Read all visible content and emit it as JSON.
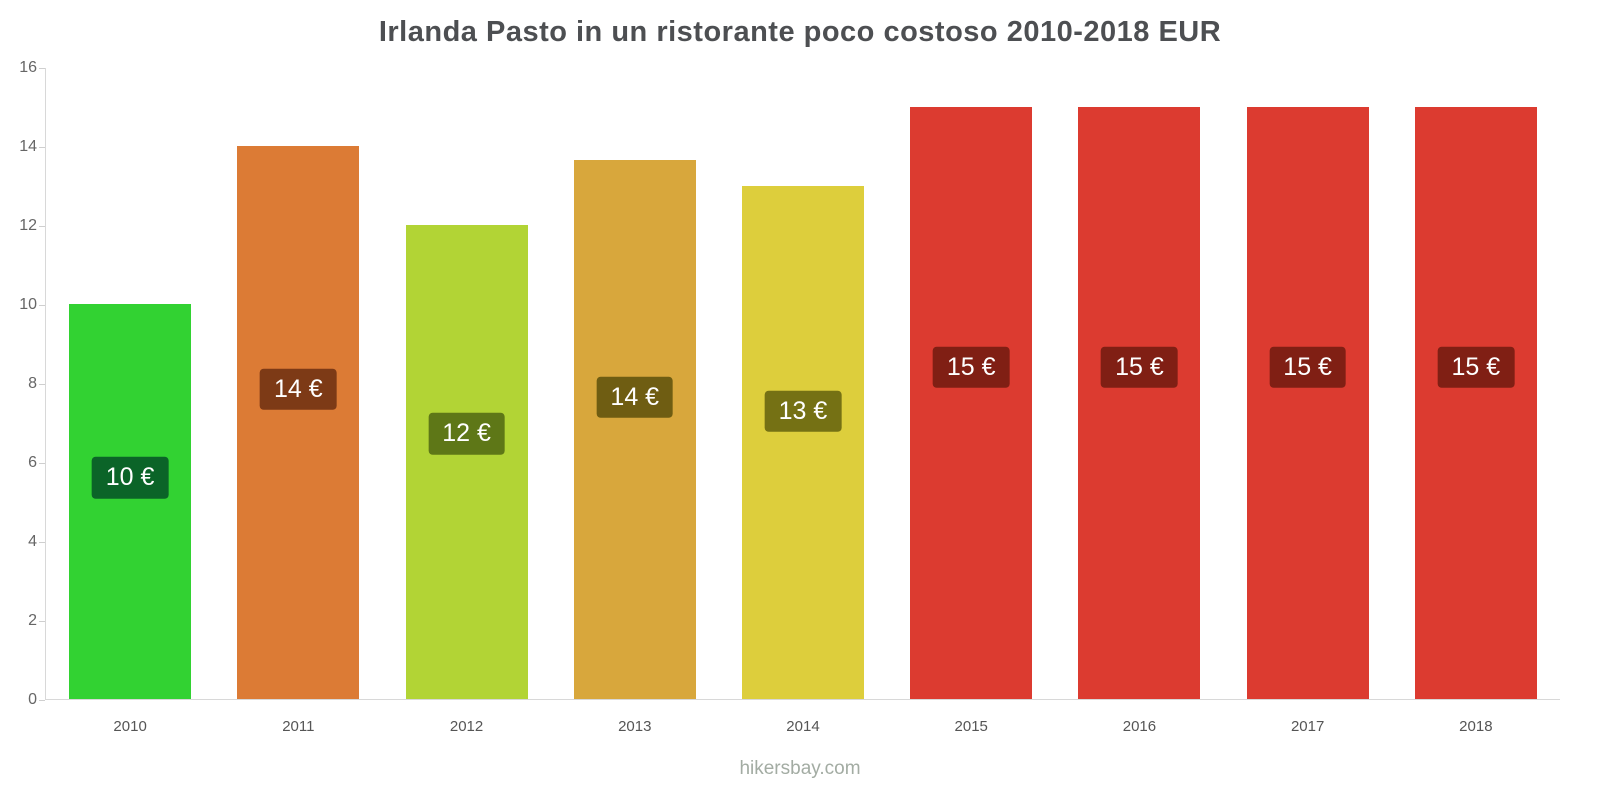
{
  "title": "Irlanda Pasto in un ristorante poco costoso 2010-2018 EUR",
  "footer": "hikersbay.com",
  "chart_data": {
    "type": "bar",
    "title": "Irlanda Pasto in un ristorante poco costoso 2010-2018 EUR",
    "xlabel": "",
    "ylabel": "",
    "categories": [
      "2010",
      "2011",
      "2012",
      "2013",
      "2014",
      "2015",
      "2016",
      "2017",
      "2018"
    ],
    "values": [
      10,
      14,
      12,
      13.65,
      13,
      15,
      15,
      15,
      15
    ],
    "bar_labels": [
      "10 €",
      "14 €",
      "12 €",
      "14 €",
      "13 €",
      "15 €",
      "15 €",
      "15 €",
      "15 €"
    ],
    "bar_colors": [
      "#32d232",
      "#dc7b35",
      "#b2d435",
      "#d8a73c",
      "#ddce3c",
      "#dc3b30",
      "#dc3b30",
      "#dc3b30",
      "#dc3b30"
    ],
    "label_colors": [
      "#0b6428",
      "#7d3a16",
      "#5e7717",
      "#6f5d12",
      "#757114",
      "#801f14",
      "#801f14",
      "#801f14",
      "#801f14"
    ],
    "ylim": [
      0,
      16
    ],
    "yticks": [
      0,
      2,
      4,
      6,
      8,
      10,
      12,
      14,
      16
    ],
    "grid": false,
    "legend": false,
    "currency": "EUR"
  }
}
